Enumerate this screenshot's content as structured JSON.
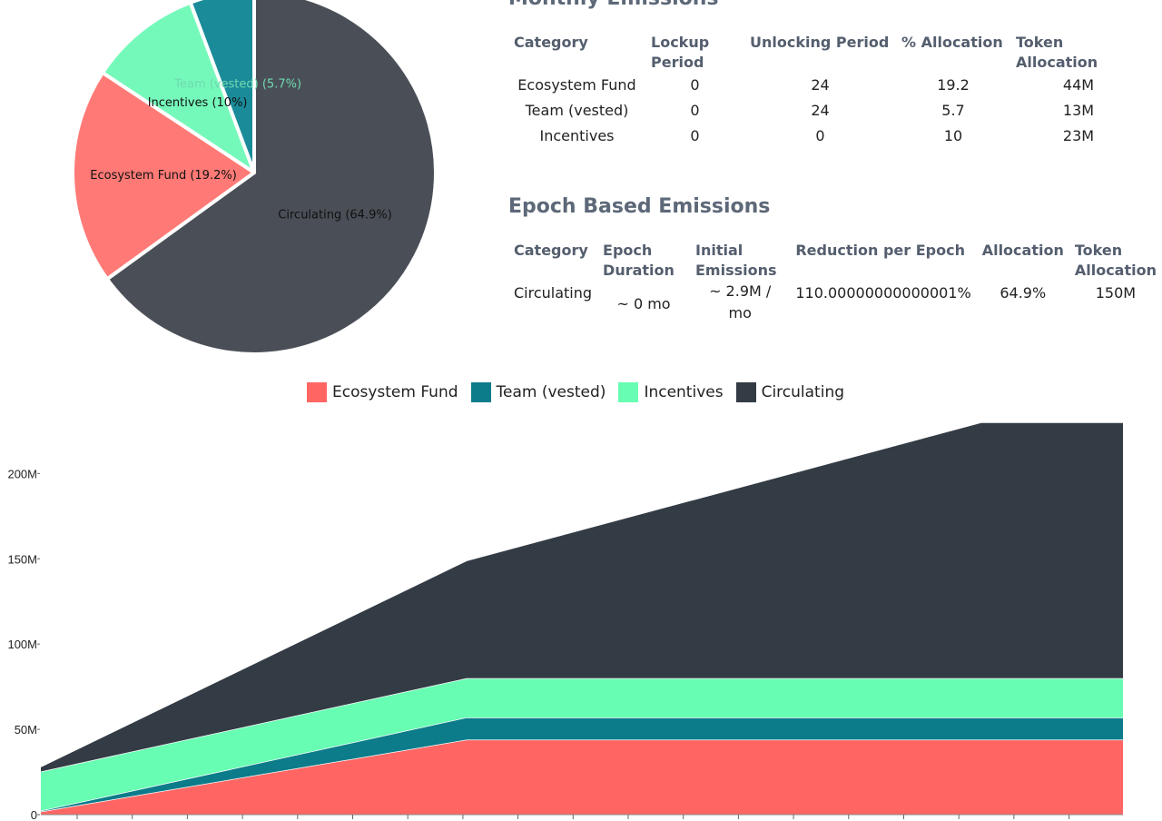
{
  "colors": {
    "Ecosystem Fund": "#ff6663",
    "Team (vested)": "#0c7b8a",
    "Incentives": "#67fdb2",
    "Circulating": "#333b44"
  },
  "pie_colors": {
    "Ecosystem Fund": "#ff7a76",
    "Team (vested)": "#1a8b99",
    "Incentives": "#75f9bb",
    "Circulating": "#4a4f57"
  },
  "monthly": {
    "title": "Monthly Emissions",
    "headers": [
      "Category",
      "Lockup Period",
      "Unlocking Period",
      "% Allocation",
      "Token Allocation"
    ],
    "rows": [
      [
        "Ecosystem Fund",
        "0",
        "24",
        "19.2",
        "44M"
      ],
      [
        "Team (vested)",
        "0",
        "24",
        "5.7",
        "13M"
      ],
      [
        "Incentives",
        "0",
        "0",
        "10",
        "23M"
      ]
    ]
  },
  "epoch": {
    "title": "Epoch Based Emissions",
    "headers": [
      "Category",
      "Epoch Duration",
      "Initial Emissions",
      "Reduction per Epoch",
      "Allocation",
      "Token Allocation"
    ],
    "rows": [
      [
        "Circulating",
        "~ 0 mo",
        "~ 2.9M / mo",
        "110.00000000000001%",
        "64.9%",
        "150M"
      ]
    ]
  },
  "chart_data": [
    {
      "type": "pie",
      "slices": [
        {
          "name": "Circulating",
          "value": 64.9,
          "label": "Circulating (64.9%)"
        },
        {
          "name": "Ecosystem Fund",
          "value": 19.2,
          "label": "Ecosystem Fund (19.2%)"
        },
        {
          "name": "Incentives",
          "value": 10,
          "label": "Incentives (10%)"
        },
        {
          "name": "Team (vested)",
          "value": 5.7,
          "label": "Team (vested) (5.7%)"
        }
      ]
    },
    {
      "type": "area",
      "stacked": true,
      "legend": [
        "Ecosystem Fund",
        "Team (vested)",
        "Incentives",
        "Circulating"
      ],
      "legend_position": "top",
      "x_unit": "months",
      "x": [
        0,
        24,
        53,
        61
      ],
      "xlim": [
        0,
        61
      ],
      "ylim": [
        0,
        230000000
      ],
      "yticks": [
        {
          "v": 0,
          "label": "0"
        },
        {
          "v": 50000000,
          "label": "50M"
        },
        {
          "v": 100000000,
          "label": "100M"
        },
        {
          "v": 150000000,
          "label": "150M"
        },
        {
          "v": 200000000,
          "label": "200M"
        }
      ],
      "series": [
        {
          "name": "Ecosystem Fund",
          "values": [
            1800000,
            44000000,
            44000000,
            44000000
          ]
        },
        {
          "name": "Team (vested)",
          "values": [
            500000,
            13000000,
            13000000,
            13000000
          ]
        },
        {
          "name": "Incentives",
          "values": [
            23000000,
            23000000,
            23000000,
            23000000
          ]
        },
        {
          "name": "Circulating",
          "values": [
            2900000,
            69000000,
            150000000,
            150000000
          ]
        }
      ],
      "grid": false
    }
  ]
}
